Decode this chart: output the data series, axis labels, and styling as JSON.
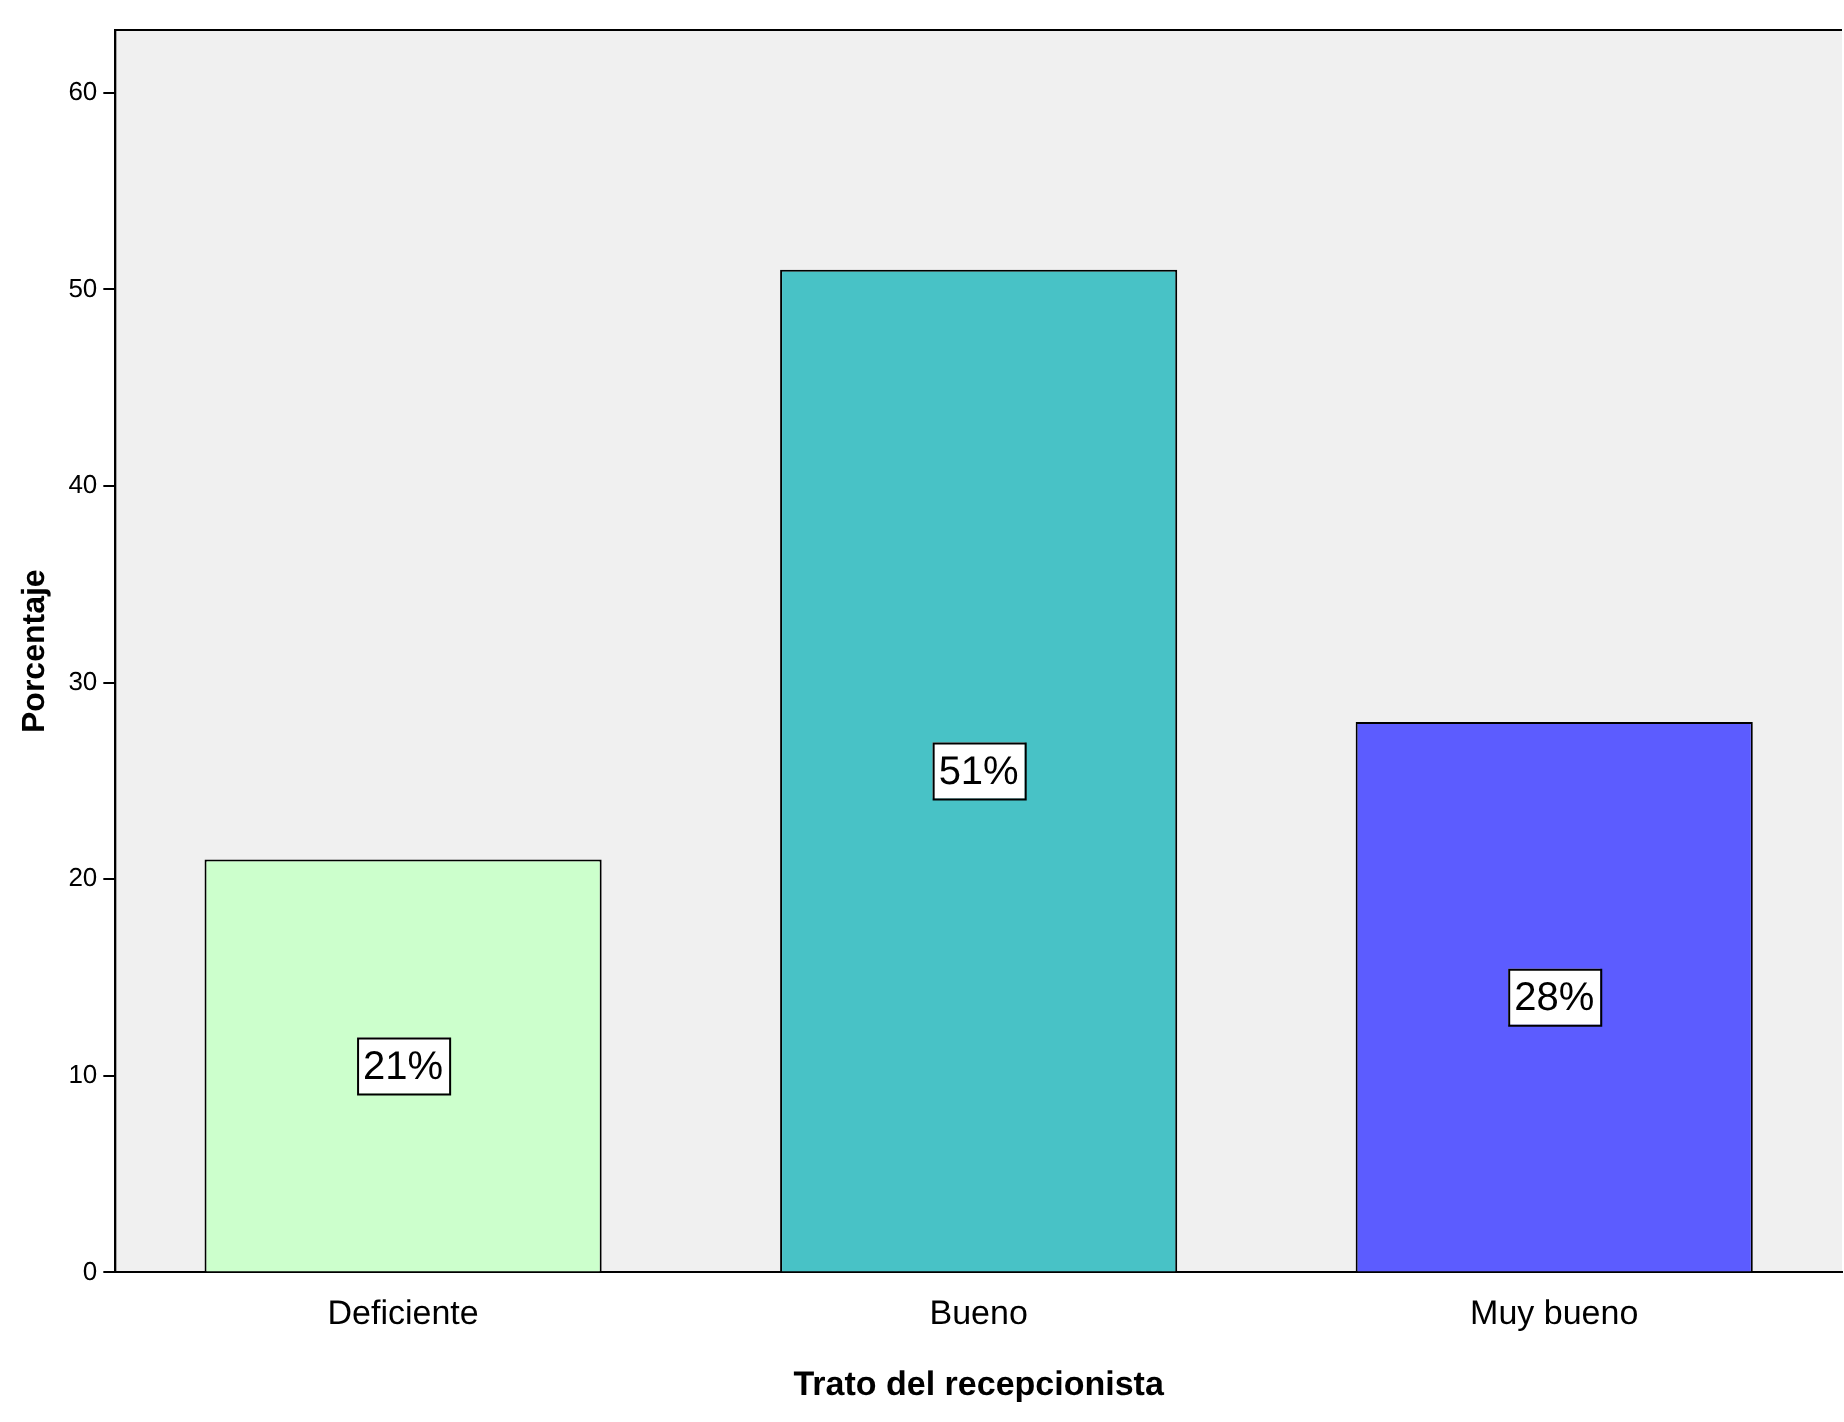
{
  "chart_data": {
    "type": "bar",
    "xlabel": "Trato del recepcionista",
    "ylabel": "Porcentaje",
    "categories": [
      "Deficiente",
      "Bueno",
      "Muy bueno"
    ],
    "values": [
      21,
      51,
      28
    ],
    "colors": [
      "#ccffcc",
      "#48c2c6",
      "#5c5cff"
    ],
    "value_labels": [
      "21%",
      "51%",
      "28%"
    ],
    "ylim": [
      0,
      63.2
    ],
    "yticks": [
      0,
      10,
      20,
      30,
      40,
      50,
      60
    ]
  }
}
